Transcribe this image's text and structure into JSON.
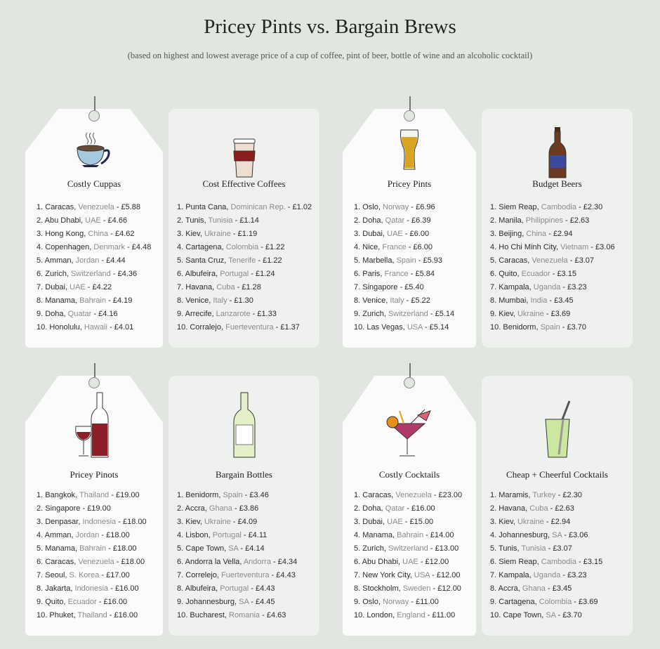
{
  "header": {
    "title": "Pricey Pints vs. Bargain Brews",
    "subtitle": "(based on highest and lowest average price of a cup of coffee, pint of beer, bottle of wine and an alcoholic cocktail)"
  },
  "colors": {
    "background": "#e1e6e1",
    "tag": "#fbfbfb",
    "card": "#eef1ee"
  },
  "panels": [
    {
      "title": "Costly Cuppas",
      "icon": "coffee-cup-icon",
      "style": "tag",
      "items": [
        {
          "rank": "1.",
          "city": "Caracas",
          "country": "Venezuela",
          "price": "£5.88"
        },
        {
          "rank": "2.",
          "city": "Abu Dhabi",
          "country": "UAE",
          "price": "£4.66"
        },
        {
          "rank": "3.",
          "city": "Hong Kong",
          "country": "China",
          "price": "£4.62"
        },
        {
          "rank": "4.",
          "city": "Copenhagen",
          "country": "Denmark",
          "price": "£4.48"
        },
        {
          "rank": "5.",
          "city": "Amman",
          "country": "Jordan",
          "price": "£4.44"
        },
        {
          "rank": "6.",
          "city": "Zurich",
          "country": "Switzerland",
          "price": "£4.36"
        },
        {
          "rank": "7.",
          "city": "Dubai",
          "country": "UAE",
          "price": "£4.22"
        },
        {
          "rank": "8.",
          "city": "Manama",
          "country": "Bahrain",
          "price": "£4.19"
        },
        {
          "rank": "9.",
          "city": "Doha",
          "country": "Quatar",
          "price": "£4.16"
        },
        {
          "rank": "10.",
          "city": "Honolulu",
          "country": "Hawaii",
          "price": "£4.01"
        }
      ]
    },
    {
      "title": "Cost Effective Coffees",
      "icon": "takeaway-coffee-icon",
      "style": "card",
      "items": [
        {
          "rank": "1.",
          "city": "Punta Cana",
          "country": "Dominican Rep.",
          "price": "£1.02"
        },
        {
          "rank": "2.",
          "city": "Tunis",
          "country": "Tunisia",
          "price": "£1.14"
        },
        {
          "rank": "3.",
          "city": "Kiev",
          "country": "Ukraine",
          "price": "£1.19"
        },
        {
          "rank": "4.",
          "city": "Cartagena",
          "country": "Colombia",
          "price": "£1.22"
        },
        {
          "rank": "5.",
          "city": "Santa Cruz",
          "country": "Tenerife",
          "price": "£1.22"
        },
        {
          "rank": "6.",
          "city": "Albufeira",
          "country": "Portugal",
          "price": "£1.24"
        },
        {
          "rank": "7.",
          "city": "Havana",
          "country": "Cuba",
          "price": "£1.28"
        },
        {
          "rank": "8.",
          "city": "Venice",
          "country": "Italy",
          "price": "£1.30"
        },
        {
          "rank": "9.",
          "city": "Arrecife",
          "country": "Lanzarote",
          "price": "£1.33"
        },
        {
          "rank": "10.",
          "city": "Corralejo",
          "country": "Fuerteventura",
          "price": "£1.37"
        }
      ]
    },
    {
      "title": "Pricey Pints",
      "icon": "beer-glass-icon",
      "style": "tag",
      "items": [
        {
          "rank": "1.",
          "city": "Oslo",
          "country": "Norway",
          "price": "£6.96"
        },
        {
          "rank": "2.",
          "city": "Doha",
          "country": "Qatar",
          "price": "£6.39"
        },
        {
          "rank": "3.",
          "city": "Dubai",
          "country": "UAE",
          "price": "£6.00"
        },
        {
          "rank": "4.",
          "city": "Nice",
          "country": "France",
          "price": "£6.00"
        },
        {
          "rank": "5.",
          "city": "Marbella",
          "country": "Spain",
          "price": "£5.93"
        },
        {
          "rank": "6.",
          "city": "Paris",
          "country": "France",
          "price": "£5.84"
        },
        {
          "rank": "7.",
          "city": "Singapore",
          "country": "",
          "price": "£5.40"
        },
        {
          "rank": "8.",
          "city": "Venice",
          "country": "Italy",
          "price": "£5.22"
        },
        {
          "rank": "9.",
          "city": "Zurich",
          "country": "Switzerland",
          "price": "£5.14"
        },
        {
          "rank": "10.",
          "city": "Las Vegas",
          "country": "USA",
          "price": "£5.14"
        }
      ]
    },
    {
      "title": "Budget Beers",
      "icon": "beer-bottle-icon",
      "style": "card",
      "items": [
        {
          "rank": "1.",
          "city": "Siem Reap",
          "country": "Cambodia",
          "price": "£2.30"
        },
        {
          "rank": "2.",
          "city": "Manila",
          "country": "Philippines",
          "price": "£2.63"
        },
        {
          "rank": "3.",
          "city": "Beijing",
          "country": "China",
          "price": "£2.94"
        },
        {
          "rank": "4.",
          "city": "Ho Chi Minh City",
          "country": "Vietnam",
          "price": "£3.06"
        },
        {
          "rank": "5.",
          "city": "Caracas",
          "country": "Venezuela",
          "price": "£3.07"
        },
        {
          "rank": "6.",
          "city": "Quito",
          "country": "Ecuador",
          "price": "£3.15"
        },
        {
          "rank": "7.",
          "city": "Kampala",
          "country": "Uganda",
          "price": "£3.23"
        },
        {
          "rank": "8.",
          "city": "Mumbai",
          "country": "India",
          "price": "£3.45"
        },
        {
          "rank": "9.",
          "city": "Kiev",
          "country": "Ukraine",
          "price": "£3.69"
        },
        {
          "rank": "10.",
          "city": "Benidorm",
          "country": "Spain",
          "price": "£3.70"
        }
      ]
    },
    {
      "title": "Pricey Pinots",
      "icon": "red-wine-icon",
      "style": "tag",
      "items": [
        {
          "rank": "1.",
          "city": "Bangkok",
          "country": "Thailand",
          "price": "£19.00"
        },
        {
          "rank": "2.",
          "city": "Singapore",
          "country": "",
          "price": "£19.00"
        },
        {
          "rank": "3.",
          "city": "Denpasar",
          "country": "Indonesia",
          "price": "£18.00"
        },
        {
          "rank": "4.",
          "city": "Amman",
          "country": "Jordan",
          "price": "£18.00"
        },
        {
          "rank": "5.",
          "city": "Manama",
          "country": "Bahrain",
          "price": "£18.00"
        },
        {
          "rank": "6.",
          "city": "Caracas",
          "country": "Venezuela",
          "price": "£18.00"
        },
        {
          "rank": "7.",
          "city": "Seoul",
          "country": "S. Korea",
          "price": "£17.00"
        },
        {
          "rank": "8.",
          "city": "Jakarta",
          "country": "Indonesia",
          "price": "£16.00"
        },
        {
          "rank": "9.",
          "city": "Quito",
          "country": "Ecuador",
          "price": "£16.00"
        },
        {
          "rank": "10.",
          "city": "Phuket",
          "country": "Thailand",
          "price": "£16.00"
        }
      ]
    },
    {
      "title": "Bargain Bottles",
      "icon": "white-wine-bottle-icon",
      "style": "card",
      "items": [
        {
          "rank": "1.",
          "city": "Benidorm",
          "country": "Spain",
          "price": "£3.46"
        },
        {
          "rank": "2.",
          "city": "Accra",
          "country": "Ghana",
          "price": "£3.86"
        },
        {
          "rank": "3.",
          "city": "Kiev",
          "country": "Ukraine",
          "price": "£4.09"
        },
        {
          "rank": "4.",
          "city": "Lisbon",
          "country": "Portugal",
          "price": "£4.11"
        },
        {
          "rank": "5.",
          "city": "Cape Town",
          "country": "SA",
          "price": "£4.14"
        },
        {
          "rank": "6.",
          "city": "Andorra la Vella",
          "country": "Andorra",
          "price": "£4.34"
        },
        {
          "rank": "7.",
          "city": "Correlejo",
          "country": "Fuerteventura",
          "price": "£4.43"
        },
        {
          "rank": "8.",
          "city": "Albufeira",
          "country": "Portugal",
          "price": "£4.43"
        },
        {
          "rank": "9.",
          "city": "Johannesburg",
          "country": "SA",
          "price": "£4.45"
        },
        {
          "rank": "10.",
          "city": "Bucharest",
          "country": "Romania",
          "price": "£4.63"
        }
      ]
    },
    {
      "title": "Costly Cocktails",
      "icon": "cocktail-glass-icon",
      "style": "tag",
      "items": [
        {
          "rank": "1.",
          "city": "Caracas",
          "country": "Venezuela",
          "price": "£23.00"
        },
        {
          "rank": "2.",
          "city": "Doha",
          "country": "Qatar",
          "price": "£16.00"
        },
        {
          "rank": "3.",
          "city": "Dubai",
          "country": "UAE",
          "price": "£15.00"
        },
        {
          "rank": "4.",
          "city": "Manama",
          "country": "Bahrain",
          "price": "£14.00"
        },
        {
          "rank": "5.",
          "city": "Zurich",
          "country": "Switzerland",
          "price": "£13.00"
        },
        {
          "rank": "6.",
          "city": "Abu Dhabi",
          "country": "UAE",
          "price": "£12.00"
        },
        {
          "rank": "7.",
          "city": "New York City",
          "country": "USA",
          "price": "£12.00"
        },
        {
          "rank": "8.",
          "city": "Stockholm",
          "country": "Sweden",
          "price": "£12.00"
        },
        {
          "rank": "9.",
          "city": "Oslo",
          "country": "Norway",
          "price": "£11.00"
        },
        {
          "rank": "10.",
          "city": "London",
          "country": "England",
          "price": "£11.00"
        }
      ]
    },
    {
      "title": "Cheap + Cheerful Cocktails",
      "icon": "highball-straw-icon",
      "style": "card",
      "items": [
        {
          "rank": "1.",
          "city": "Maramis",
          "country": "Turkey",
          "price": "£2.30"
        },
        {
          "rank": "2.",
          "city": "Havana",
          "country": "Cuba",
          "price": "£2.63"
        },
        {
          "rank": "3.",
          "city": "Kiev",
          "country": "Ukraine",
          "price": "£2.94"
        },
        {
          "rank": "4.",
          "city": "Johannesburg",
          "country": "SA",
          "price": "£3.06"
        },
        {
          "rank": "5.",
          "city": "Tunis",
          "country": "Tunisia",
          "price": "£3.07"
        },
        {
          "rank": "6.",
          "city": "Siem Reap",
          "country": "Cambodia",
          "price": "£3.15"
        },
        {
          "rank": "7.",
          "city": "Kampala",
          "country": "Uganda",
          "price": "£3.23"
        },
        {
          "rank": "8.",
          "city": "Accra",
          "country": "Ghana",
          "price": "£3.45"
        },
        {
          "rank": "9.",
          "city": "Cartagena",
          "country": "Colombia",
          "price": "£3.69"
        },
        {
          "rank": "10.",
          "city": "Cape Town",
          "country": "SA",
          "price": "£3.70"
        }
      ]
    }
  ]
}
